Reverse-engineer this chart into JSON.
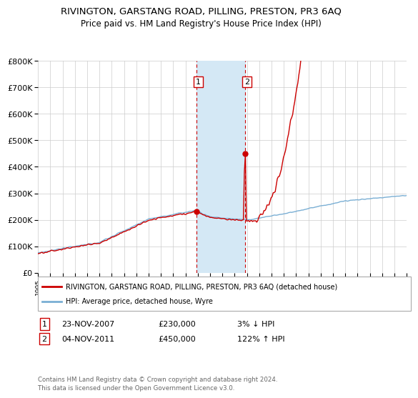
{
  "title": "RIVINGTON, GARSTANG ROAD, PILLING, PRESTON, PR3 6AQ",
  "subtitle": "Price paid vs. HM Land Registry's House Price Index (HPI)",
  "ylabel_ticks": [
    "£0",
    "£100K",
    "£200K",
    "£300K",
    "£400K",
    "£500K",
    "£600K",
    "£700K",
    "£800K"
  ],
  "ylim": [
    0,
    800000
  ],
  "xlim_start": 1995,
  "xlim_end": 2025,
  "sale1_date": 2007.9,
  "sale1_price": 230000,
  "sale2_date": 2011.84,
  "sale2_price": 450000,
  "highlight_x1": 2007.9,
  "highlight_x2": 2011.84,
  "legend_line1": "RIVINGTON, GARSTANG ROAD, PILLING, PRESTON, PR3 6AQ (detached house)",
  "legend_line2": "HPI: Average price, detached house, Wyre",
  "table_row1": [
    "1",
    "23-NOV-2007",
    "£230,000",
    "3% ↓ HPI"
  ],
  "table_row2": [
    "2",
    "04-NOV-2011",
    "£450,000",
    "122% ↑ HPI"
  ],
  "footnote": "Contains HM Land Registry data © Crown copyright and database right 2024.\nThis data is licensed under the Open Government Licence v3.0.",
  "line_red": "#cc0000",
  "line_blue": "#7aafd4",
  "highlight_fill": "#d4e8f5",
  "highlight_edge": "#cc0000",
  "background": "#ffffff"
}
